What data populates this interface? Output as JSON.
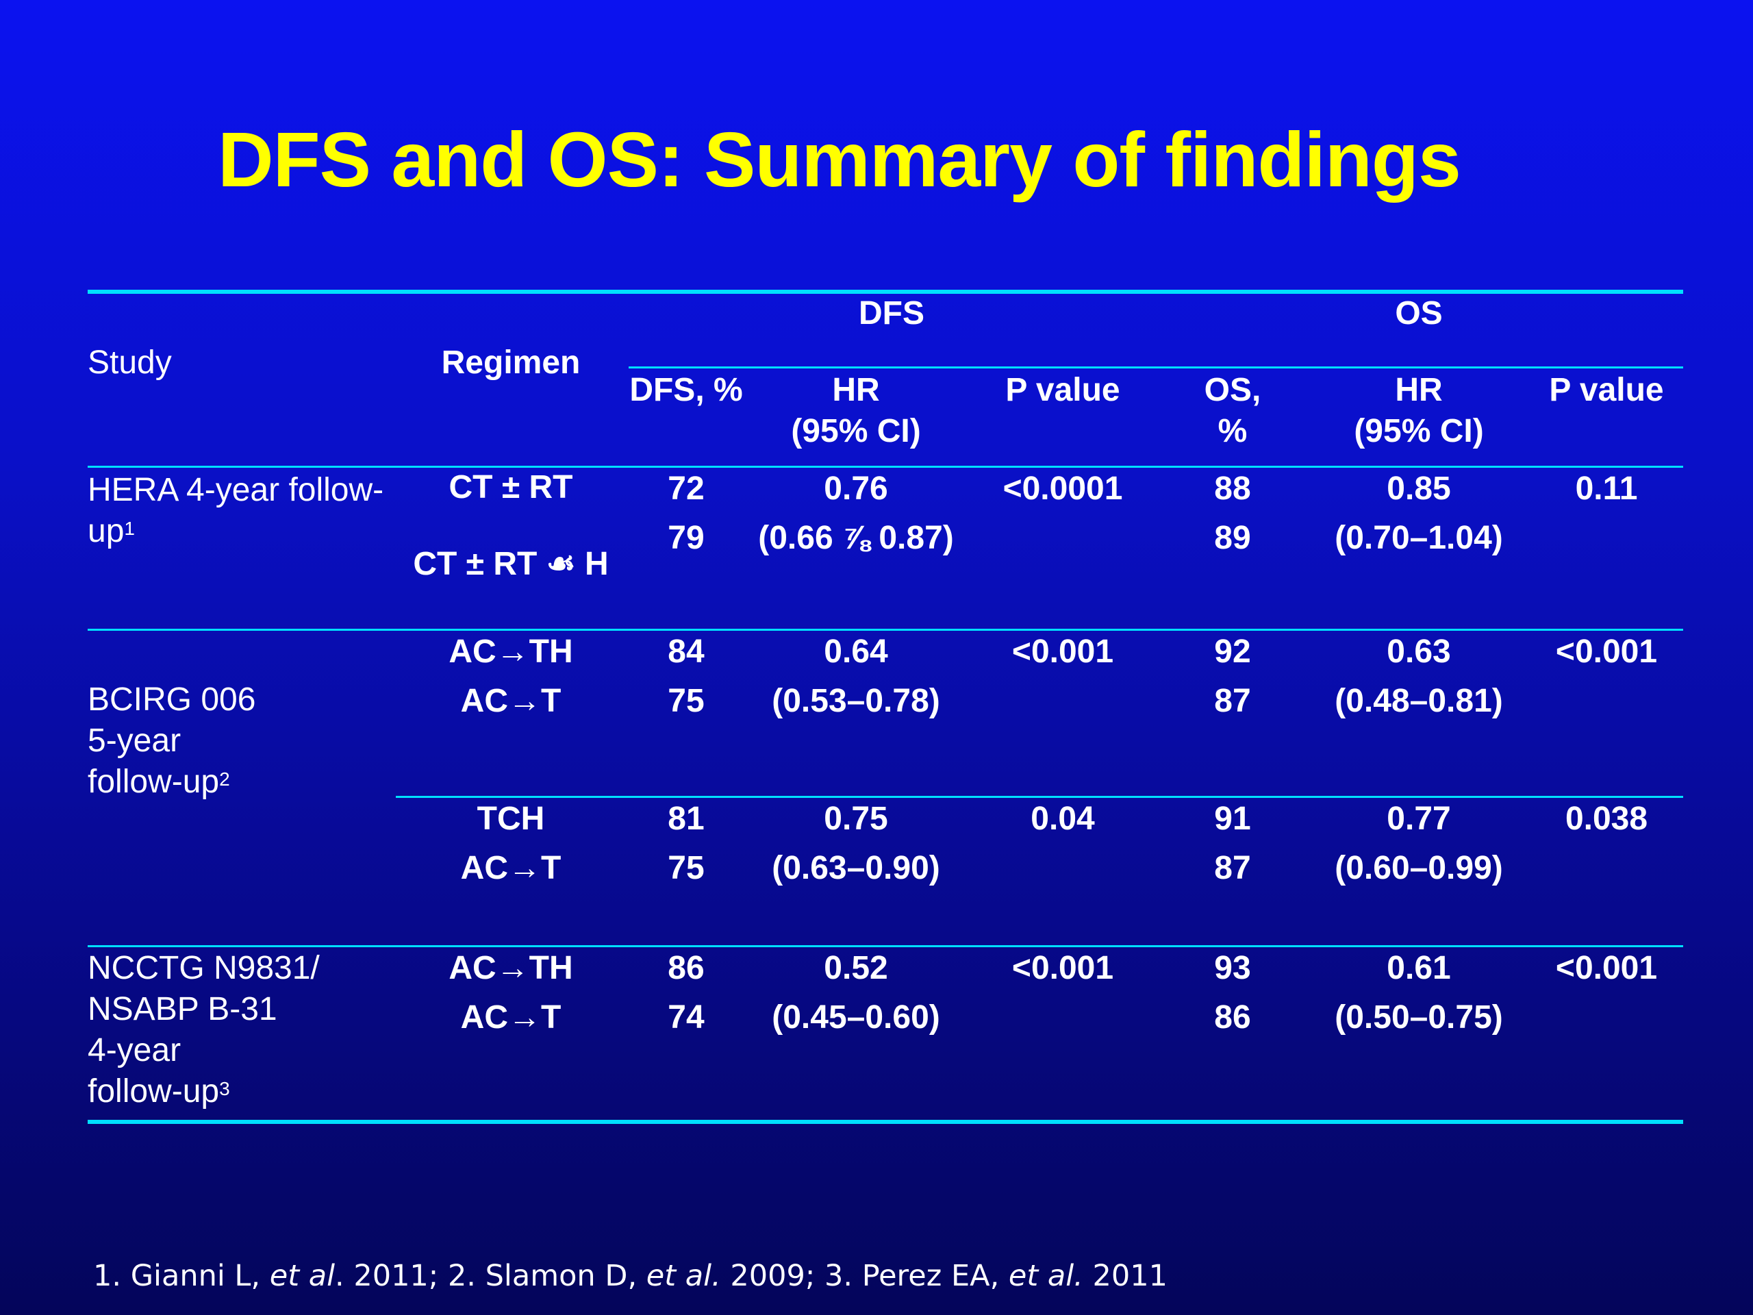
{
  "title": "DFS and OS: Summary of findings",
  "table": {
    "header": {
      "study": "Study",
      "regimen": "Regimen",
      "dfs_group": "DFS",
      "os_group": "OS",
      "dfs_pct": "DFS, %",
      "dfs_hr_1": "HR",
      "dfs_hr_2": "(95% CI)",
      "dfs_p": "P value",
      "os_pct_1": "OS,",
      "os_pct_2": "%",
      "os_hr_1": "HR",
      "os_hr_2": "(95% CI)",
      "os_p": "P value"
    },
    "hera": {
      "study_1": "HERA 4-year follow-",
      "study_2": "up",
      "study_sup": "1",
      "regimen_1": "CT ± RT",
      "regimen_2": "CT ± RT ☙ H",
      "dfs_1": "72",
      "dfs_2": "79",
      "dfs_hr": "0.76",
      "dfs_ci": "(0.66 ⅞ 0.87)",
      "dfs_p": "<0.0001",
      "os_1": "88",
      "os_2": "89",
      "os_hr": "0.85",
      "os_ci": "(0.70–1.04)",
      "os_p": "0.11"
    },
    "bcirg": {
      "study_1": "BCIRG 006",
      "study_2": "5-year",
      "study_3": "follow-up",
      "study_sup": "2",
      "a": {
        "regimen_1": "AC→TH",
        "regimen_2": "AC→T",
        "dfs_1": "84",
        "dfs_2": "75",
        "dfs_hr": "0.64",
        "dfs_ci": "(0.53–0.78)",
        "dfs_p": "<0.001",
        "os_1": "92",
        "os_2": "87",
        "os_hr": "0.63",
        "os_ci": "(0.48–0.81)",
        "os_p": "<0.001"
      },
      "b": {
        "regimen_1": "TCH",
        "regimen_2": "AC→T",
        "dfs_1": "81",
        "dfs_2": "75",
        "dfs_hr": "0.75",
        "dfs_ci": "(0.63–0.90)",
        "dfs_p": "0.04",
        "os_1": "91",
        "os_2": "87",
        "os_hr": "0.77",
        "os_ci": "(0.60–0.99)",
        "os_p": "0.038"
      }
    },
    "ncctg": {
      "study_1": "NCCTG N9831/",
      "study_2": "NSABP B-31",
      "study_3": "4-year",
      "study_4": "follow-up",
      "study_sup": "3",
      "regimen_1": "AC→TH",
      "regimen_2": "AC→T",
      "dfs_1": "86",
      "dfs_2": "74",
      "dfs_hr": "0.52",
      "dfs_ci": "(0.45–0.60)",
      "dfs_p": "<0.001",
      "os_1": "93",
      "os_2": "86",
      "os_hr": "0.61",
      "os_ci": "(0.50–0.75)",
      "os_p": "<0.001"
    }
  },
  "footnote": {
    "p1": "1. Gianni L, ",
    "etal1": "et al",
    "p2": ". 2011; 2. Slamon D, ",
    "etal2": "et al.",
    "p3": " 2009; 3. Perez EA, ",
    "etal3": "et al.",
    "p4": " 2011"
  }
}
